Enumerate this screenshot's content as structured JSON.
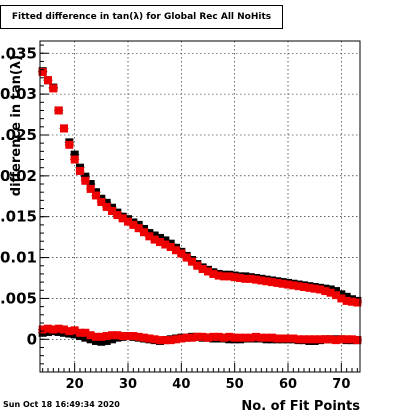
{
  "chart_data": {
    "type": "scatter",
    "title": "Fitted difference in tan(λ) for Global Rec All NoHits",
    "xlabel": "No. of Fit Points",
    "ylabel": "difference in tan(λ)",
    "xlim": [
      13.5,
      73.5
    ],
    "ylim": [
      -0.004,
      0.0365
    ],
    "xticks": [
      20,
      30,
      40,
      50,
      60,
      70
    ],
    "xtick_labels": [
      "20",
      "30",
      "40",
      "50",
      "60",
      "70"
    ],
    "yticks": [
      0,
      0.005,
      0.01,
      0.015,
      0.02,
      0.025,
      0.03,
      0.035
    ],
    "ytick_labels": [
      "0",
      "0.005",
      "0.01",
      "0.015",
      "0.02",
      "0.025",
      "0.03",
      "0.035"
    ],
    "grid": true,
    "legend": "none",
    "colors": {
      "series_black": "#000000",
      "series_red": "#ee0000"
    },
    "x": [
      14,
      15,
      16,
      17,
      18,
      19,
      20,
      21,
      22,
      23,
      24,
      25,
      26,
      27,
      28,
      29,
      30,
      31,
      32,
      33,
      34,
      35,
      36,
      37,
      38,
      39,
      40,
      41,
      42,
      43,
      44,
      45,
      46,
      47,
      48,
      49,
      50,
      51,
      52,
      53,
      54,
      55,
      56,
      57,
      58,
      59,
      60,
      61,
      62,
      63,
      64,
      65,
      66,
      67,
      68,
      69,
      70,
      71,
      72,
      73
    ],
    "series": [
      {
        "values": [
          0.0328,
          0.0317,
          0.0308,
          0.028,
          0.0258,
          0.0241,
          0.0226,
          0.021,
          0.0199,
          0.019,
          0.018,
          0.0172,
          0.0167,
          0.0161,
          0.0155,
          0.015,
          0.0147,
          0.0143,
          0.014,
          0.0135,
          0.013,
          0.0127,
          0.0124,
          0.0121,
          0.0117,
          0.0112,
          0.0107,
          0.0102,
          0.0097,
          0.0092,
          0.0088,
          0.0085,
          0.0082,
          0.008,
          0.0079,
          0.0079,
          0.0078,
          0.0077,
          0.0077,
          0.0076,
          0.0075,
          0.0074,
          0.0073,
          0.0072,
          0.0071,
          0.007,
          0.0069,
          0.0068,
          0.0067,
          0.0066,
          0.0065,
          0.0064,
          0.0063,
          0.0062,
          0.0061,
          0.0059,
          0.0055,
          0.0052,
          0.0049,
          0.0047
        ],
        "errors": [
          0.0002,
          0.0002,
          0.0002,
          0.0002,
          0.0002,
          0.0002,
          0.0002,
          0.0002,
          0.0002,
          0.0002,
          0.0002,
          0.0002,
          0.0002,
          0.0002,
          0.0002,
          0.0002,
          0.0002,
          0.0002,
          0.0002,
          0.0002,
          0.0002,
          0.0002,
          0.0002,
          0.0002,
          0.0002,
          0.0002,
          0.0002,
          0.0002,
          0.0002,
          0.0002,
          0.0002,
          0.0002,
          0.0002,
          0.0002,
          0.0002,
          0.0002,
          0.0002,
          0.0002,
          0.0002,
          0.0002,
          0.0002,
          0.0002,
          0.0002,
          0.0002,
          0.0002,
          0.0002,
          0.0002,
          0.0002,
          0.0002,
          0.0002,
          0.0002,
          0.0002,
          0.0002,
          0.0002,
          0.0002,
          0.0002,
          0.0002,
          0.0002,
          0.0002,
          0.0003
        ]
      },
      {
        "values": [
          0.0327,
          0.0317,
          0.0307,
          0.028,
          0.0258,
          0.0238,
          0.022,
          0.0206,
          0.0194,
          0.0184,
          0.0176,
          0.0168,
          0.0162,
          0.0157,
          0.0152,
          0.0148,
          0.0144,
          0.014,
          0.0136,
          0.0131,
          0.0126,
          0.0122,
          0.0119,
          0.0116,
          0.0113,
          0.0109,
          0.0105,
          0.01,
          0.0095,
          0.009,
          0.0086,
          0.0083,
          0.008,
          0.0078,
          0.0077,
          0.0077,
          0.0076,
          0.0075,
          0.0074,
          0.0074,
          0.0073,
          0.0072,
          0.0071,
          0.007,
          0.0069,
          0.0068,
          0.0067,
          0.0066,
          0.0065,
          0.0064,
          0.0063,
          0.0062,
          0.0061,
          0.0059,
          0.0057,
          0.0054,
          0.005,
          0.0047,
          0.0046,
          0.0045
        ],
        "errors": [
          0.0002,
          0.0002,
          0.0002,
          0.0002,
          0.0002,
          0.0002,
          0.0002,
          0.0002,
          0.0002,
          0.0002,
          0.0002,
          0.0002,
          0.0002,
          0.0002,
          0.0002,
          0.0002,
          0.0002,
          0.0002,
          0.0002,
          0.0002,
          0.0002,
          0.0002,
          0.0002,
          0.0002,
          0.0002,
          0.0002,
          0.0002,
          0.0002,
          0.0002,
          0.0002,
          0.0002,
          0.0002,
          0.0002,
          0.0002,
          0.0002,
          0.0002,
          0.0002,
          0.0002,
          0.0002,
          0.0002,
          0.0002,
          0.0002,
          0.0002,
          0.0002,
          0.0002,
          0.0002,
          0.0002,
          0.0002,
          0.0002,
          0.0002,
          0.0002,
          0.0002,
          0.0002,
          0.0002,
          0.0002,
          0.0002,
          0.0002,
          0.0002,
          0.0002,
          0.0003
        ]
      },
      {
        "values": [
          0.0008,
          0.0009,
          0.001,
          0.0009,
          0.0008,
          0.0007,
          0.0006,
          0.0004,
          0.0002,
          0.0,
          -0.0002,
          -0.0003,
          -0.0002,
          0.0,
          0.0002,
          0.0003,
          0.0004,
          0.0003,
          0.0002,
          0.0001,
          0.0,
          -0.0001,
          -0.0002,
          -0.0001,
          0.0,
          0.0001,
          0.0002,
          0.0002,
          0.0003,
          0.0003,
          0.0002,
          0.0002,
          0.0001,
          0.0001,
          0.0001,
          0.0,
          0.0,
          0.0,
          0.0001,
          0.0001,
          0.0001,
          0.0001,
          0.0,
          0.0,
          0.0,
          0.0,
          0.0,
          0.0,
          -0.0001,
          -0.0001,
          -0.0002,
          -0.0002,
          -0.0001,
          0.0,
          0.0,
          0.0,
          0.0,
          -0.0001,
          -0.0001,
          -0.0001
        ],
        "errors": [
          0.0003,
          0.0003,
          0.0003,
          0.0003,
          0.0003,
          0.0003,
          0.0003,
          0.0003,
          0.0003,
          0.0003,
          0.0003,
          0.0003,
          0.0003,
          0.0003,
          0.0003,
          0.0003,
          0.0003,
          0.0003,
          0.0003,
          0.0003,
          0.0003,
          0.0003,
          0.0003,
          0.0003,
          0.0003,
          0.0003,
          0.0003,
          0.0003,
          0.0003,
          0.0003,
          0.0003,
          0.0003,
          0.0003,
          0.0003,
          0.0003,
          0.0003,
          0.0003,
          0.0003,
          0.0003,
          0.0003,
          0.0003,
          0.0003,
          0.0003,
          0.0003,
          0.0003,
          0.0003,
          0.0003,
          0.0003,
          0.0003,
          0.0003,
          0.0003,
          0.0003,
          0.0003,
          0.0003,
          0.0003,
          0.0003,
          0.0003,
          0.0003,
          0.0003,
          0.0003
        ]
      },
      {
        "values": [
          0.0012,
          0.0013,
          0.0012,
          0.0013,
          0.0012,
          0.001,
          0.0011,
          0.0008,
          0.0008,
          0.0005,
          0.0003,
          0.0003,
          0.0004,
          0.0005,
          0.0005,
          0.0004,
          0.0004,
          0.0004,
          0.0003,
          0.0002,
          0.0001,
          0.0,
          -0.0001,
          -0.0001,
          -0.0001,
          0.0,
          0.0001,
          0.0002,
          0.0002,
          0.0003,
          0.0003,
          0.0002,
          0.0003,
          0.0003,
          0.0002,
          0.0003,
          0.0002,
          0.0002,
          0.0002,
          0.0002,
          0.0003,
          0.0002,
          0.0002,
          0.0002,
          0.0001,
          0.0001,
          0.0001,
          0.0001,
          0.0,
          0.0,
          0.0,
          0.0,
          0.0,
          0.0,
          0.0,
          -0.0001,
          0.0,
          0.0,
          0.0,
          -0.0001
        ],
        "errors": [
          0.0003,
          0.0003,
          0.0003,
          0.0003,
          0.0003,
          0.0003,
          0.0003,
          0.0003,
          0.0003,
          0.0003,
          0.0003,
          0.0003,
          0.0003,
          0.0003,
          0.0003,
          0.0003,
          0.0003,
          0.0003,
          0.0003,
          0.0003,
          0.0003,
          0.0003,
          0.0003,
          0.0003,
          0.0003,
          0.0003,
          0.0003,
          0.0003,
          0.0003,
          0.0003,
          0.0003,
          0.0003,
          0.0003,
          0.0003,
          0.0003,
          0.0003,
          0.0003,
          0.0003,
          0.0003,
          0.0003,
          0.0003,
          0.0003,
          0.0003,
          0.0003,
          0.0003,
          0.0003,
          0.0003,
          0.0003,
          0.0003,
          0.0003,
          0.0003,
          0.0003,
          0.0003,
          0.0003,
          0.0003,
          0.0003,
          0.0003,
          0.0003,
          0.0003,
          0.0003
        ]
      }
    ]
  },
  "footer": {
    "date_stamp": "Sun Oct 18 16:49:34 2020"
  }
}
